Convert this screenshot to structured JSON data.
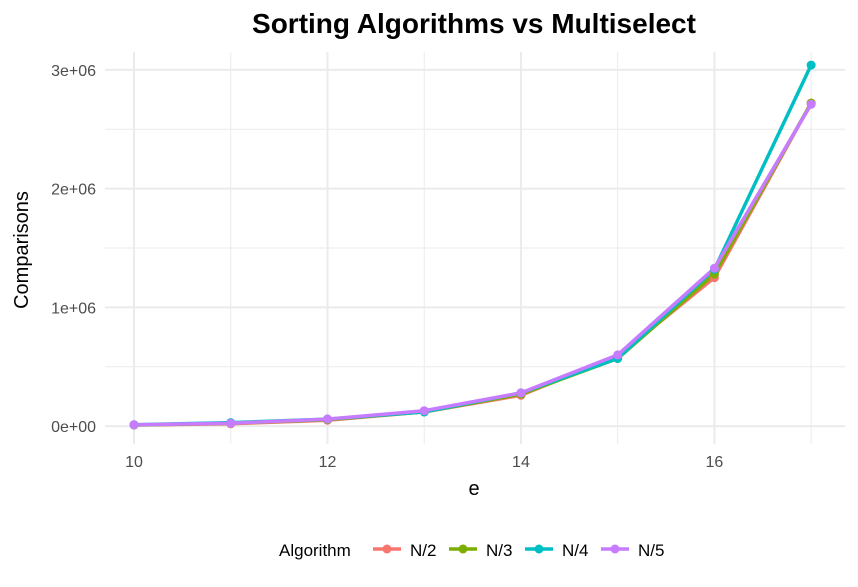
{
  "chart_data": {
    "type": "line",
    "title": "Sorting Algorithms vs Multiselect",
    "xlabel": "e",
    "ylabel": "Comparisons",
    "x": [
      10,
      11,
      12,
      13,
      14,
      15,
      16,
      17
    ],
    "xticks": [
      10,
      12,
      14,
      16
    ],
    "xtick_labels": [
      "10",
      "12",
      "14",
      "16"
    ],
    "xlim": [
      9.7,
      17.35
    ],
    "yticks": [
      0,
      1000000,
      2000000,
      3000000
    ],
    "ytick_labels": [
      "0e+00",
      "1e+06",
      "2e+06",
      "3e+06"
    ],
    "ylim": [
      -150000,
      3150000
    ],
    "grid": true,
    "legend": {
      "title": "Algorithm",
      "position": "bottom"
    },
    "series": [
      {
        "name": "N/2",
        "color": "#F8766D",
        "values": [
          10000,
          20000,
          50000,
          120000,
          260000,
          590000,
          1250000,
          2720000
        ]
      },
      {
        "name": "N/3",
        "color": "#7CAE00",
        "values": [
          10000,
          25000,
          55000,
          120000,
          270000,
          570000,
          1280000,
          2720000
        ]
      },
      {
        "name": "N/4",
        "color": "#00BFC4",
        "values": [
          12000,
          30000,
          60000,
          120000,
          280000,
          570000,
          1320000,
          3040000
        ]
      },
      {
        "name": "N/5",
        "color": "#C77CFF",
        "values": [
          12000,
          25000,
          60000,
          130000,
          280000,
          600000,
          1330000,
          2710000
        ]
      }
    ]
  }
}
